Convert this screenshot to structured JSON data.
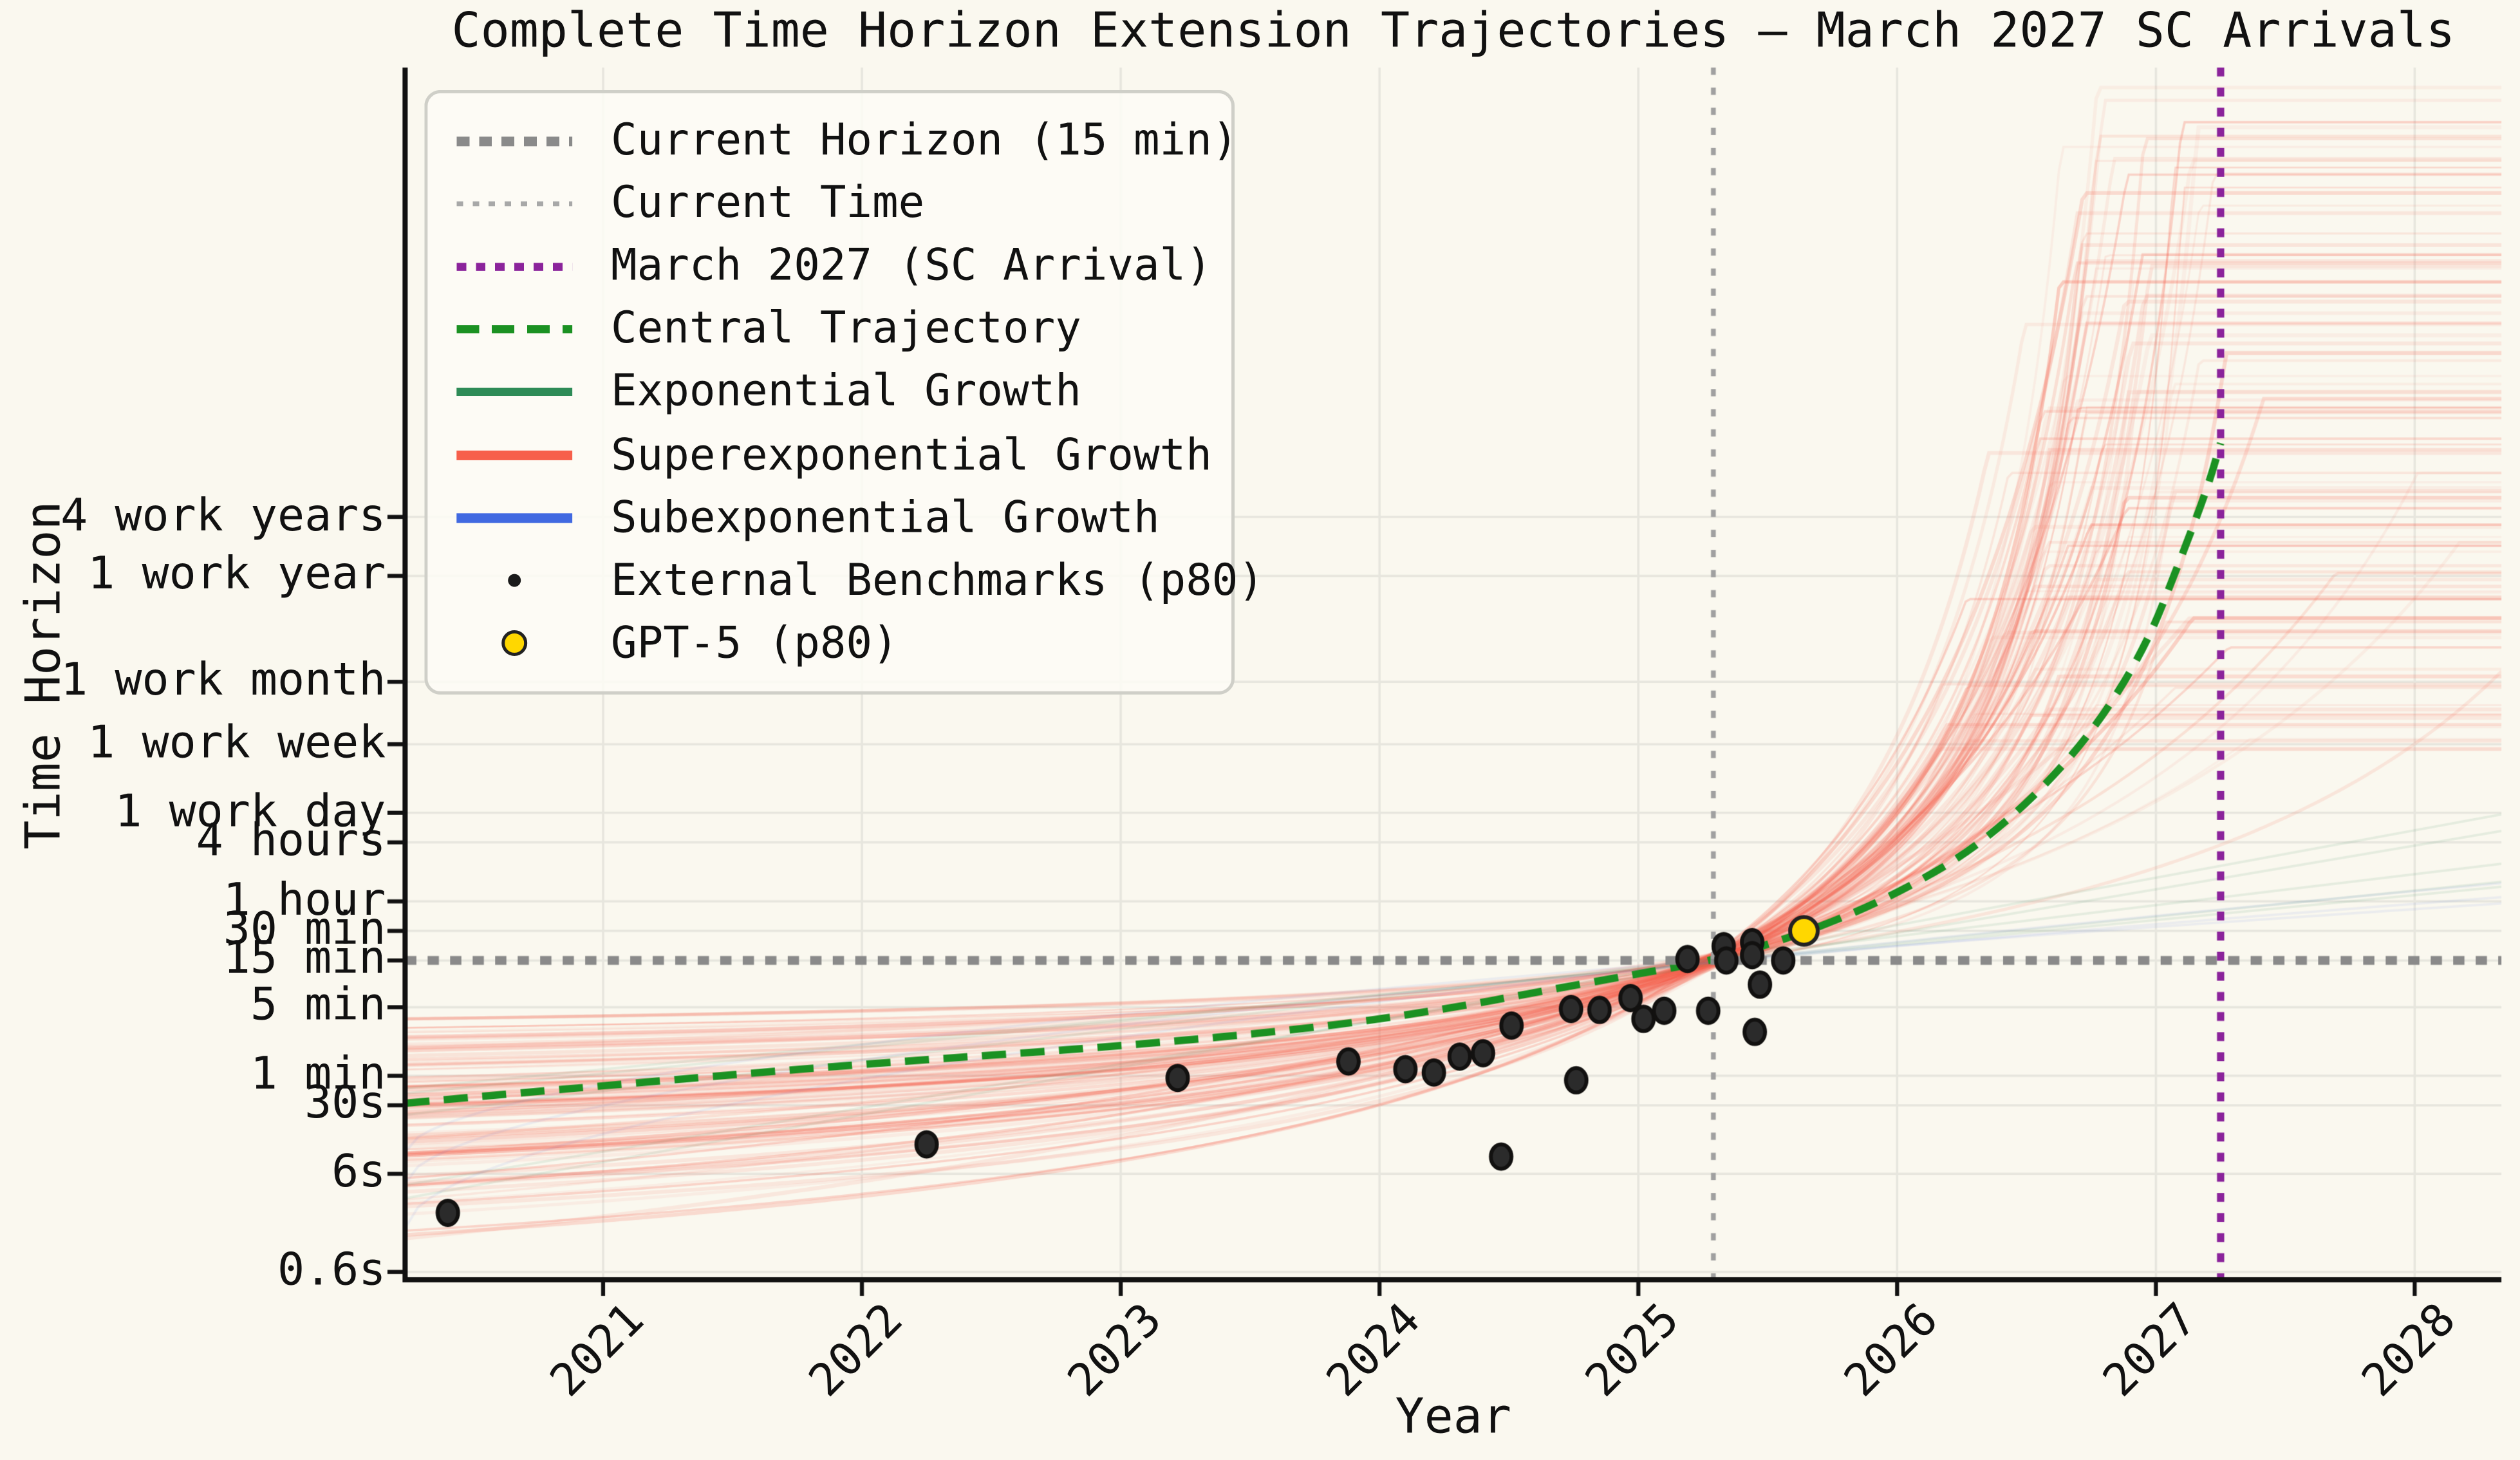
{
  "chart_data": {
    "type": "line",
    "title": "Complete Time Horizon Extension Trajectories — March 2027 SC Arrivals",
    "xlabel": "Year",
    "ylabel": "Time Horizon",
    "grid": true,
    "legend_position": "upper left",
    "background_color": "#FAF8EF",
    "grid_color": "#E7E6DE",
    "spine_color": "#111111",
    "x_ticks": [
      2021,
      2022,
      2023,
      2024,
      2025,
      2026,
      2027,
      2028
    ],
    "xlim": [
      2020.235,
      2028.335
    ],
    "y_scale": "log10 minutes",
    "ylim_log10_minutes": [
      -2.08,
      10.28
    ],
    "y_ticks": [
      {
        "label": "0.6s",
        "minutes": 0.01
      },
      {
        "label": "6s",
        "minutes": 0.1
      },
      {
        "label": "30s",
        "minutes": 0.5
      },
      {
        "label": "1 min",
        "minutes": 1
      },
      {
        "label": "5 min",
        "minutes": 5
      },
      {
        "label": "15 min",
        "minutes": 15
      },
      {
        "label": "30 min",
        "minutes": 30
      },
      {
        "label": "1 hour",
        "minutes": 60
      },
      {
        "label": "4 hours",
        "minutes": 240
      },
      {
        "label": "1 work day",
        "minutes": 480
      },
      {
        "label": "1 work week",
        "minutes": 2400
      },
      {
        "label": "1 work month",
        "minutes": 10400
      },
      {
        "label": "1 work year",
        "minutes": 124800
      },
      {
        "label": "4 work years",
        "minutes": 499200
      }
    ],
    "reference_lines": {
      "current_horizon": {
        "label": "Current Horizon (15 min)",
        "orientation": "horizontal",
        "minutes": 15,
        "color": "#8A8A8A",
        "style": "dotted-thick"
      },
      "current_time": {
        "label": "Current Time",
        "orientation": "vertical",
        "year": 2025.29,
        "color": "#A0A0A0",
        "style": "dotted-thin"
      },
      "sc_arrival": {
        "label": "March 2027 (SC Arrival)",
        "orientation": "vertical",
        "year": 2027.25,
        "color": "#8B239B",
        "style": "dotted-medium"
      }
    },
    "central_trajectory": {
      "label": "Central Trajectory",
      "color": "#1B9122",
      "style": "dashed",
      "points_year_log10min": [
        [
          2020.235,
          -0.28
        ],
        [
          2021.0,
          -0.1
        ],
        [
          2022.0,
          0.12
        ],
        [
          2023.0,
          0.3
        ],
        [
          2023.8,
          0.5
        ],
        [
          2024.3,
          0.7
        ],
        [
          2024.6,
          0.85
        ],
        [
          2025.0,
          1.04
        ],
        [
          2025.29,
          1.176
        ],
        [
          2025.64,
          1.45
        ],
        [
          2026.0,
          1.85
        ],
        [
          2026.35,
          2.4
        ],
        [
          2026.7,
          3.3
        ],
        [
          2026.95,
          4.3
        ],
        [
          2027.1,
          5.3
        ],
        [
          2027.2,
          6.0
        ],
        [
          2027.25,
          6.45
        ]
      ]
    },
    "trajectory_ensemble": {
      "seed": 20270317,
      "convergence": {
        "year": 2025.29,
        "log10min": 1.176,
        "jitter": 0.08
      },
      "start_year": 2020.235,
      "end_year": 2028.335,
      "start_log10min_range": [
        -1.8,
        0.58
      ],
      "plateau_log10min_range": [
        3.3,
        10.1
      ],
      "superexponential": {
        "label": "Superexponential Growth",
        "color": "#F75F4B",
        "count": 105,
        "singularity_year_range": [
          2026.95,
          2027.75
        ]
      },
      "exponential": {
        "label": "Exponential Growth",
        "color": "#2E8B57",
        "count": 5
      },
      "subexponential": {
        "label": "Subexponential Growth",
        "color": "#4169E1",
        "count": 3
      }
    },
    "benchmarks": {
      "label": "External Benchmarks (p80)",
      "color": "#2B2B2B",
      "points_year_minutes": [
        [
          2020.4,
          0.04
        ],
        [
          2022.25,
          0.2
        ],
        [
          2023.22,
          0.95
        ],
        [
          2023.88,
          1.4
        ],
        [
          2024.1,
          1.17
        ],
        [
          2024.21,
          1.08
        ],
        [
          2024.31,
          1.57
        ],
        [
          2024.4,
          1.7
        ],
        [
          2024.47,
          0.15
        ],
        [
          2024.51,
          3.25
        ],
        [
          2024.74,
          4.8
        ],
        [
          2024.76,
          0.9
        ],
        [
          2024.85,
          4.7
        ],
        [
          2024.97,
          6.2
        ],
        [
          2025.02,
          3.8
        ],
        [
          2025.1,
          4.6
        ],
        [
          2025.19,
          15.5
        ],
        [
          2025.27,
          4.6
        ],
        [
          2025.33,
          21.0
        ],
        [
          2025.34,
          15.0
        ],
        [
          2025.44,
          23.0
        ],
        [
          2025.44,
          17.0
        ],
        [
          2025.45,
          2.8
        ],
        [
          2025.47,
          8.5
        ],
        [
          2025.56,
          15.0
        ]
      ]
    },
    "gpt5": {
      "label": "GPT-5 (p80)",
      "color": "#FFD700",
      "edge_color": "#222222",
      "point_year_minutes": [
        2025.64,
        30
      ]
    },
    "legend": [
      {
        "label": "Current Horizon (15 min)",
        "color": "#8A8A8A",
        "style": "dotted-thick"
      },
      {
        "label": "Current Time",
        "color": "#A8A8A8",
        "style": "dotted-thin"
      },
      {
        "label": "March 2027 (SC Arrival)",
        "color": "#8B239B",
        "style": "dotted-medium"
      },
      {
        "label": "Central Trajectory",
        "color": "#1B9122",
        "style": "dashed"
      },
      {
        "label": "Exponential Growth",
        "color": "#2E8B57",
        "style": "solid"
      },
      {
        "label": "Superexponential Growth",
        "color": "#F75F4B",
        "style": "solid"
      },
      {
        "label": "Subexponential Growth",
        "color": "#4169E1",
        "style": "solid"
      },
      {
        "label": "External Benchmarks (p80)",
        "color": "#1A1A1A",
        "style": "marker-small"
      },
      {
        "label": "GPT-5 (p80)",
        "color": "#FFD700",
        "style": "marker-gold"
      }
    ]
  }
}
